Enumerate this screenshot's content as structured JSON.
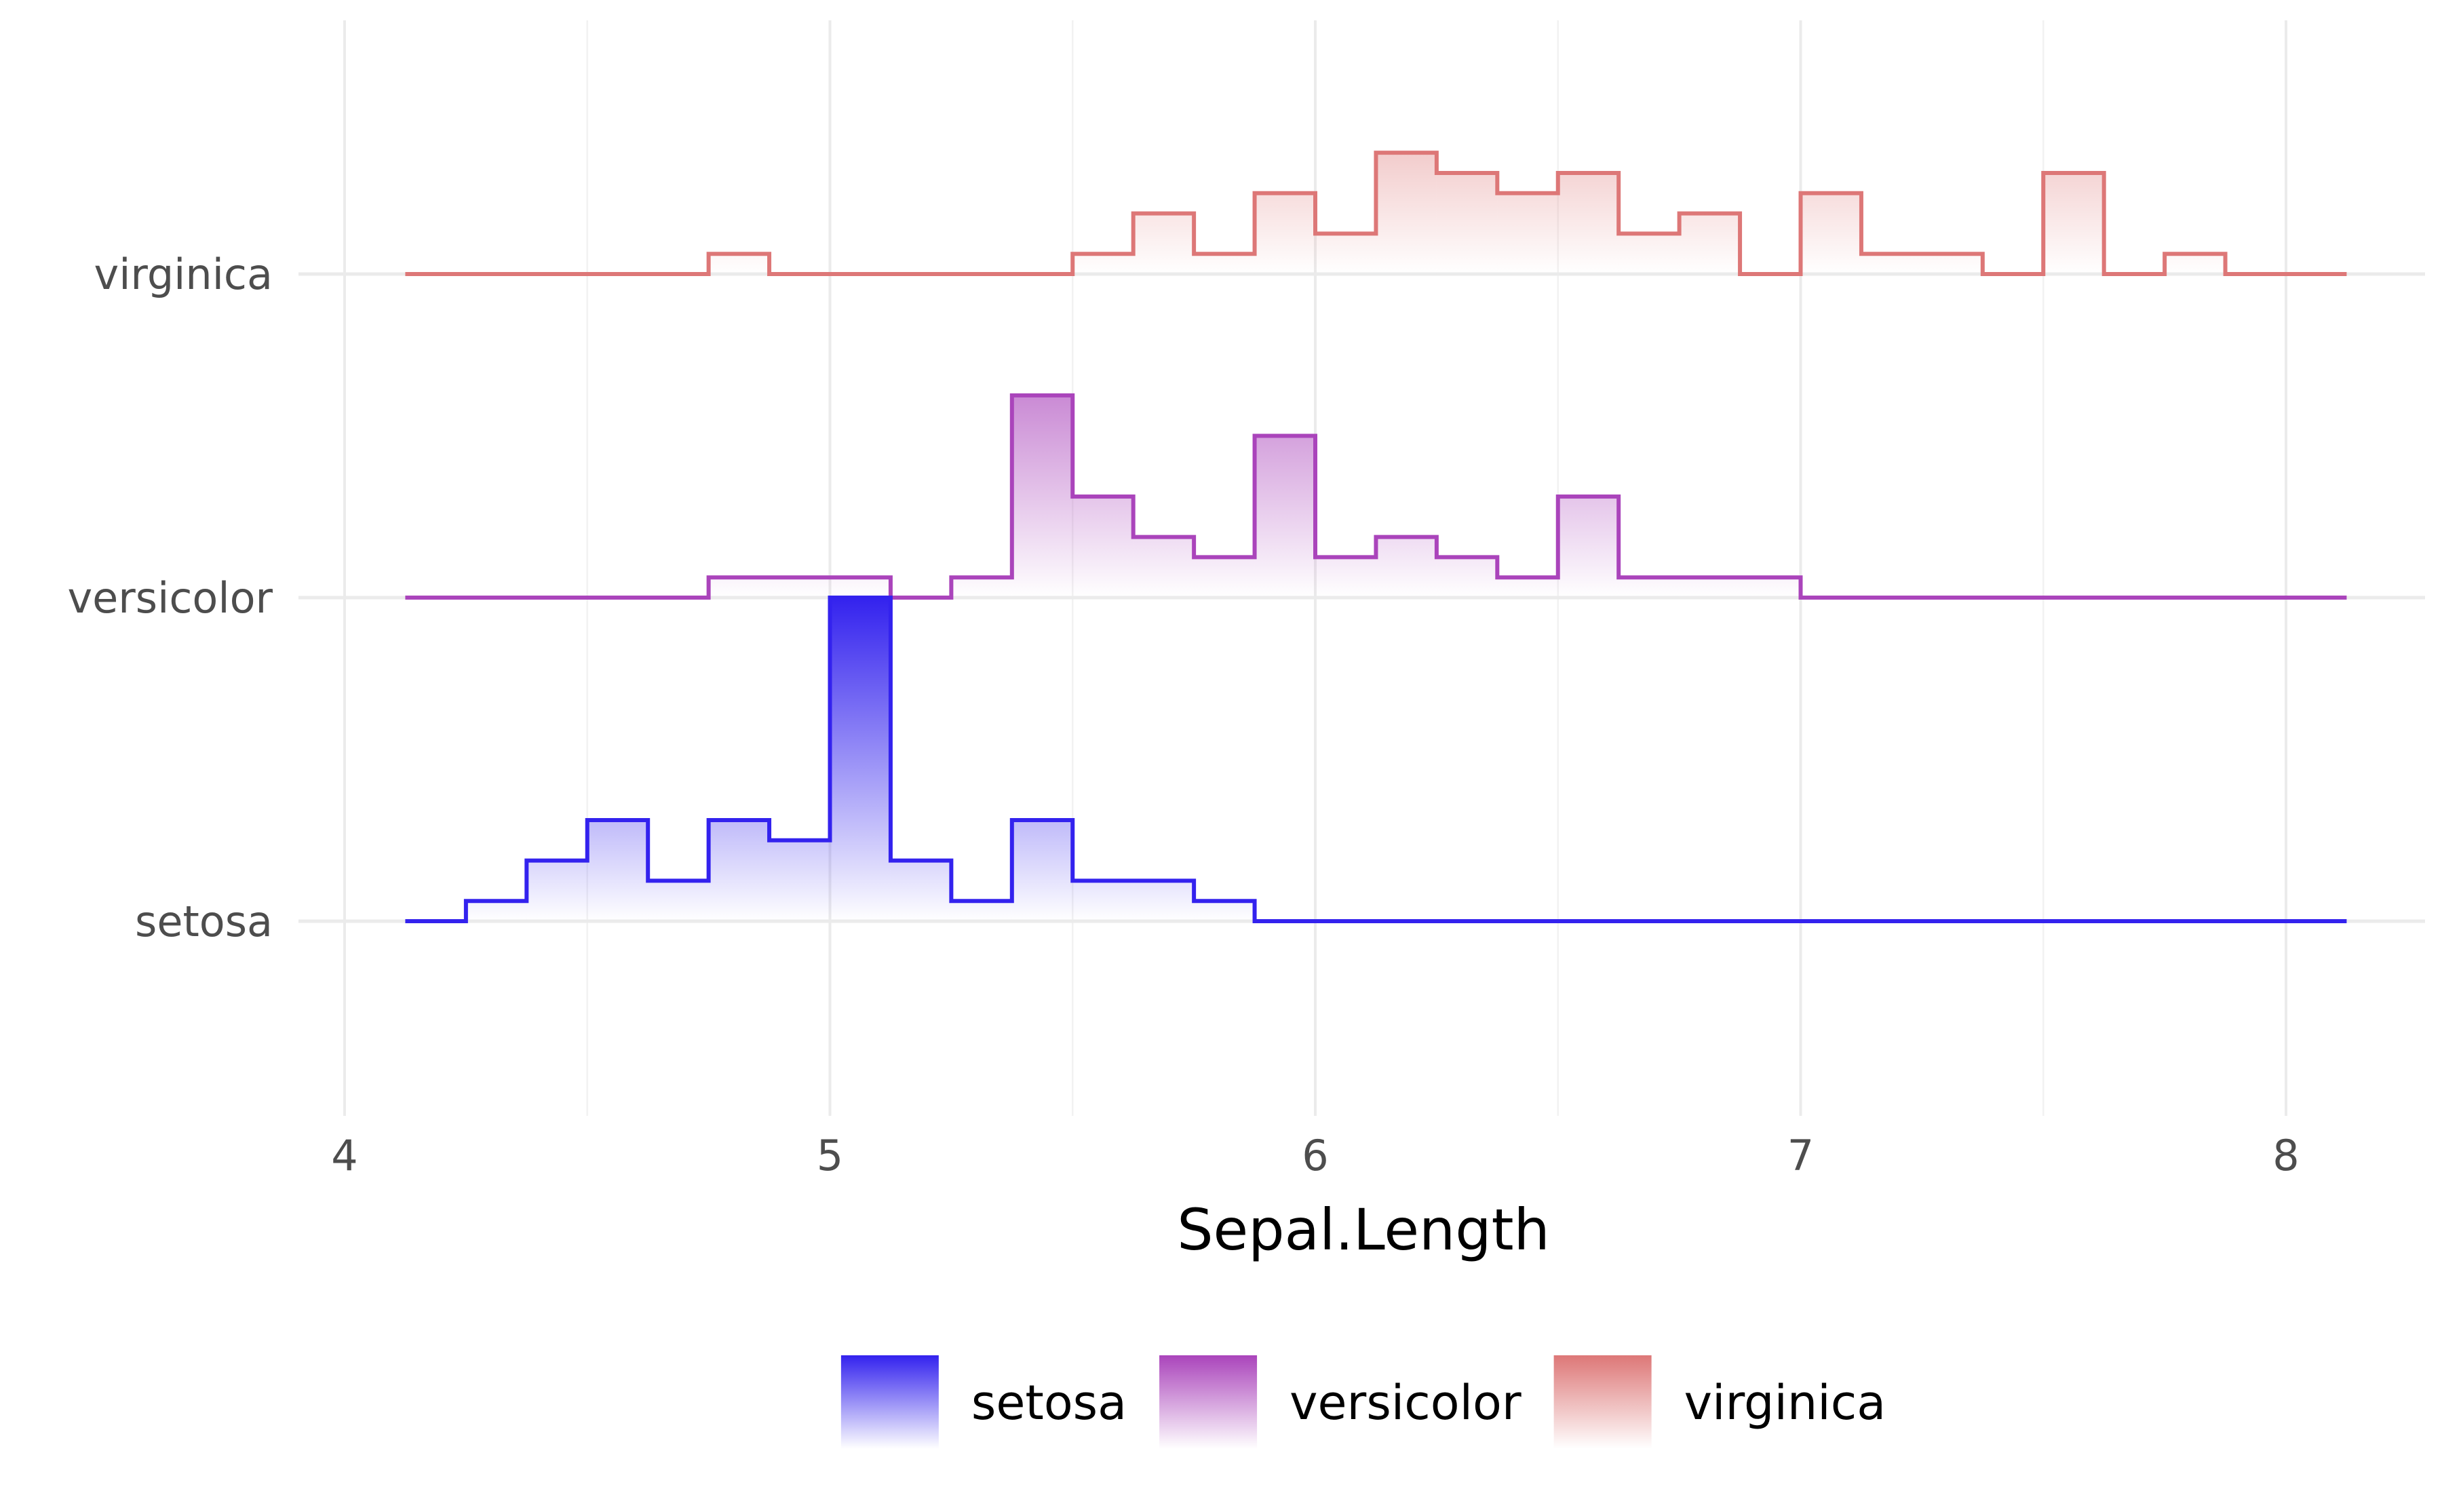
{
  "chart_data": {
    "type": "ridgeline-histogram",
    "xlabel": "Sepal.Length",
    "ylabel": "",
    "xlim": [
      3.97,
      8.27
    ],
    "x_ticks": [
      4,
      5,
      6,
      7,
      8
    ],
    "bin_edges": [
      4.125,
      4.25,
      4.375,
      4.5,
      4.625,
      4.75,
      4.875,
      5.0,
      5.125,
      5.25,
      5.375,
      5.5,
      5.625,
      5.75,
      5.875,
      6.0,
      6.125,
      6.25,
      6.375,
      6.5,
      6.625,
      6.75,
      6.875,
      7.0,
      7.125,
      7.25,
      7.375,
      7.5,
      7.625,
      7.75,
      7.875,
      8.0,
      8.125
    ],
    "categories": [
      "setosa",
      "versicolor",
      "virginica"
    ],
    "series": [
      {
        "name": "setosa",
        "color": "#3322ee",
        "counts": [
          0,
          1,
          3,
          5,
          2,
          5,
          4,
          16,
          3,
          1,
          5,
          2,
          2,
          1,
          0,
          0,
          0,
          0,
          0,
          0,
          0,
          0,
          0,
          0,
          0,
          0,
          0,
          0,
          0,
          0,
          0,
          0
        ]
      },
      {
        "name": "versicolor",
        "color": "#aa44bb",
        "counts": [
          0,
          0,
          0,
          0,
          0,
          1,
          1,
          1,
          0,
          1,
          10,
          5,
          3,
          2,
          8,
          2,
          3,
          2,
          1,
          5,
          1,
          1,
          1,
          0,
          0,
          0,
          0,
          0,
          0,
          0,
          0,
          0
        ]
      },
      {
        "name": "virginica",
        "color": "#dd7777",
        "counts": [
          0,
          0,
          0,
          0,
          0,
          1,
          0,
          0,
          0,
          0,
          0,
          1,
          3,
          1,
          4,
          2,
          6,
          5,
          4,
          5,
          2,
          3,
          0,
          4,
          1,
          1,
          0,
          5,
          0,
          1,
          0,
          0
        ]
      }
    ],
    "legend": {
      "position": "bottom",
      "items": [
        "setosa",
        "versicolor",
        "virginica"
      ]
    },
    "grid": true
  }
}
